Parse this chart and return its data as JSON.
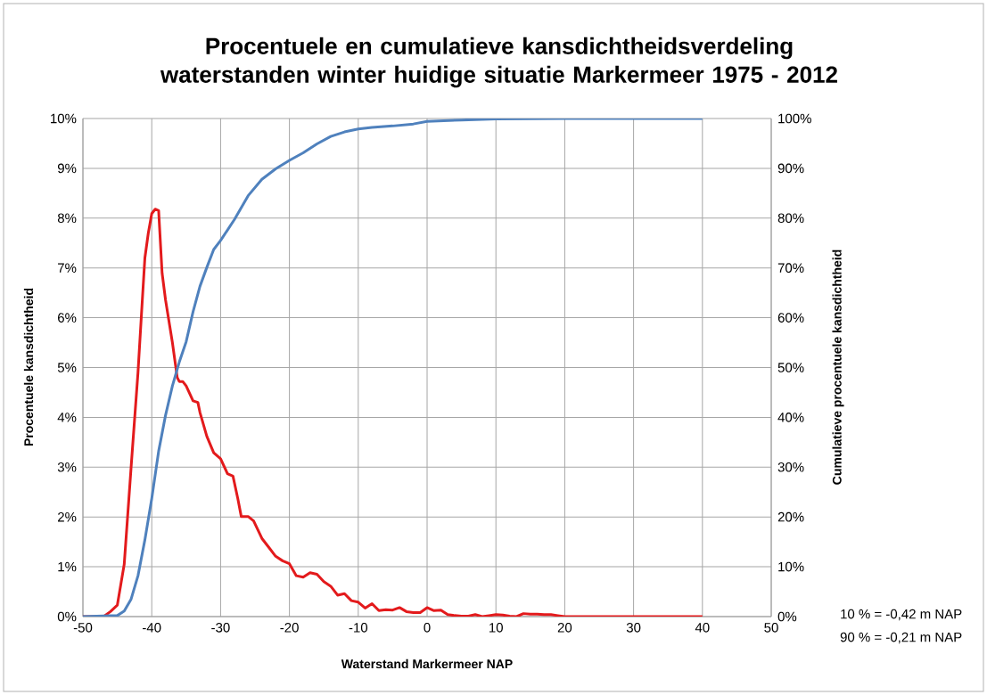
{
  "chart_data": {
    "type": "line",
    "title": "Procentuele en cumulatieve kansdichtheidsverdeling\nwaterstanden winter huidige situatie Markermeer 1975 - 2012",
    "xlabel": "Waterstand Markermeer NAP",
    "ylabel": "Procentuele kansdichtheid",
    "y2label": "Cumulatieve procentuele kansdichtheid",
    "annotations": [
      "10 % =  -0,42 m NAP",
      "90 % =  -0,21 m NAP"
    ],
    "xlim": [
      -50,
      50
    ],
    "xticks": [
      -50,
      -40,
      -30,
      -20,
      -10,
      0,
      10,
      20,
      30,
      40,
      50
    ],
    "ylim": [
      0,
      10
    ],
    "yticks": [
      {
        "value": 0,
        "label": "0%"
      },
      {
        "value": 1,
        "label": "1%"
      },
      {
        "value": 2,
        "label": "2%"
      },
      {
        "value": 3,
        "label": "3%"
      },
      {
        "value": 4,
        "label": "4%"
      },
      {
        "value": 5,
        "label": "5%"
      },
      {
        "value": 6,
        "label": "6%"
      },
      {
        "value": 7,
        "label": "7%"
      },
      {
        "value": 8,
        "label": "8%"
      },
      {
        "value": 9,
        "label": "9%"
      },
      {
        "value": 10,
        "label": "10%"
      }
    ],
    "y2lim": [
      0,
      100
    ],
    "y2ticks": [
      {
        "value": 0,
        "label": "0%"
      },
      {
        "value": 10,
        "label": "10%"
      },
      {
        "value": 20,
        "label": "20%"
      },
      {
        "value": 30,
        "label": "30%"
      },
      {
        "value": 40,
        "label": "40%"
      },
      {
        "value": 50,
        "label": "50%"
      },
      {
        "value": 60,
        "label": "60%"
      },
      {
        "value": 70,
        "label": "70%"
      },
      {
        "value": 80,
        "label": "80%"
      },
      {
        "value": 90,
        "label": "90%"
      },
      {
        "value": 100,
        "label": "100%"
      }
    ],
    "grid": true,
    "series": [
      {
        "color": "#e31a1c",
        "x": [
          -50,
          -47,
          -46,
          -45,
          -44,
          -43,
          -42,
          -41.5,
          -41,
          -40.5,
          -40,
          -39.5,
          -39,
          -38.5,
          -38,
          -37,
          -36.3,
          -36,
          -35.5,
          -35,
          -34,
          -33.3,
          -33,
          -32,
          -31,
          -30,
          -29,
          -28.2,
          -27.5,
          -27,
          -26,
          -25.2,
          -24,
          -23,
          -22,
          -21,
          -20,
          -19,
          -18,
          -17,
          -16,
          -15,
          -14,
          -13,
          -12,
          -11,
          -10,
          -9,
          -8,
          -7,
          -6,
          -5,
          -4,
          -3,
          -2,
          -1,
          0,
          1,
          2,
          3,
          4,
          5,
          6,
          7,
          8,
          9,
          10,
          11,
          12,
          13,
          14,
          15,
          16,
          17,
          18,
          19,
          20,
          30,
          40
        ],
        "values": [
          0,
          0,
          0.1,
          0.23,
          1.05,
          3.0,
          4.9,
          6.06,
          7.2,
          7.7,
          8.09,
          8.18,
          8.15,
          6.9,
          6.36,
          5.5,
          4.8,
          4.72,
          4.72,
          4.63,
          4.33,
          4.3,
          4.1,
          3.62,
          3.29,
          3.17,
          2.87,
          2.82,
          2.37,
          2.01,
          2.01,
          1.92,
          1.57,
          1.39,
          1.21,
          1.12,
          1.06,
          0.82,
          0.79,
          0.88,
          0.85,
          0.7,
          0.61,
          0.43,
          0.46,
          0.32,
          0.29,
          0.17,
          0.26,
          0.12,
          0.14,
          0.13,
          0.18,
          0.1,
          0.08,
          0.08,
          0.18,
          0.12,
          0.13,
          0.04,
          0.02,
          0.01,
          0.01,
          0.04,
          0.0,
          0.02,
          0.04,
          0.03,
          0.01,
          0.0,
          0.06,
          0.05,
          0.05,
          0.04,
          0.04,
          0.02,
          0,
          0,
          0
        ]
      },
      {
        "color": "#4f81bd",
        "axis": "y2",
        "x": [
          -50,
          -45,
          -44,
          -43,
          -42,
          -41,
          -40,
          -39,
          -38,
          -37,
          -36,
          -35,
          -34,
          -33,
          -32,
          -31,
          -30,
          -28,
          -26,
          -24,
          -22,
          -20,
          -18,
          -16,
          -14,
          -12,
          -10,
          -8,
          -5,
          -2,
          0,
          5,
          10,
          20,
          40
        ],
        "values": [
          0,
          0.2,
          1.1,
          3.5,
          8.2,
          15.4,
          23.7,
          33.2,
          40.4,
          46.3,
          51.1,
          55.2,
          61.2,
          66.3,
          70.1,
          73.7,
          75.5,
          79.7,
          84.5,
          87.8,
          89.9,
          91.6,
          93.1,
          94.9,
          96.4,
          97.3,
          97.9,
          98.2,
          98.5,
          98.9,
          99.4,
          99.7,
          99.9,
          100,
          100
        ]
      }
    ]
  }
}
